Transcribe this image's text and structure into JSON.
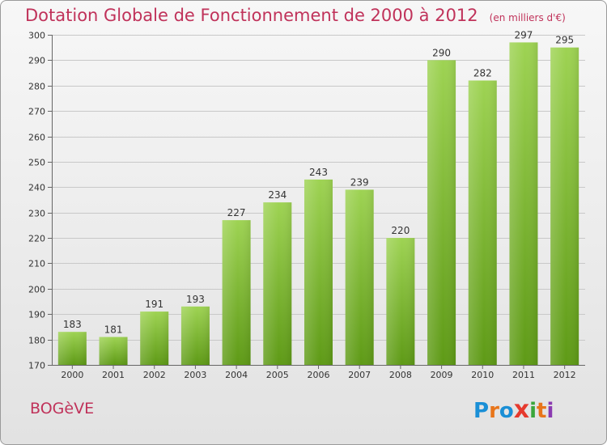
{
  "header": {
    "title": "Dotation Globale de Fonctionnement de 2000 à 2012",
    "subtitle": "(en milliers d'€)"
  },
  "footer": {
    "commune": "BOGèVE",
    "brand": "Proxiti",
    "brand_colors": [
      "#1a8fd6",
      "#e8751a",
      "#1a8fd6",
      "#e63a2e",
      "#3aa63a",
      "#e8751a",
      "#8a3ab0"
    ]
  },
  "colors": {
    "title": "#c0325a",
    "bar_top": "#9ed353",
    "bar_bottom": "#5e9a16",
    "grid": "#c8c8c8",
    "axis": "#666666"
  },
  "chart_data": {
    "type": "bar",
    "categories": [
      "2000",
      "2001",
      "2002",
      "2003",
      "2004",
      "2005",
      "2006",
      "2007",
      "2008",
      "2009",
      "2010",
      "2011",
      "2012"
    ],
    "values": [
      183,
      181,
      191,
      193,
      227,
      234,
      243,
      239,
      220,
      290,
      282,
      297,
      295
    ],
    "yticks": [
      170,
      180,
      190,
      200,
      210,
      220,
      230,
      240,
      250,
      260,
      270,
      280,
      290,
      300
    ],
    "ylim": [
      170,
      300
    ],
    "grid": true,
    "legend": "none"
  }
}
